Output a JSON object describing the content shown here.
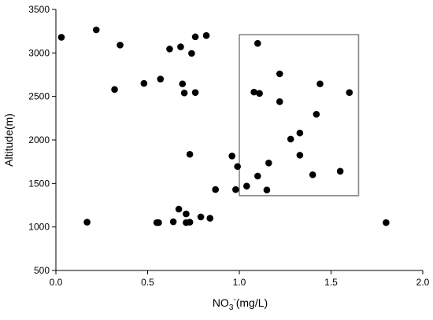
{
  "chart_data": {
    "type": "scatter",
    "xlabel_main": "NO",
    "xlabel_sub": "3",
    "xlabel_sup": "-",
    "xlabel_unit": "(mg/L)",
    "ylabel": "Altitude(m)",
    "xlim": [
      0,
      2.0
    ],
    "ylim": [
      500,
      3500
    ],
    "x_ticks": [
      0.0,
      0.5,
      1.0,
      1.5,
      2.0
    ],
    "x_tick_labels": [
      "0.0",
      "0.5",
      "1.0",
      "1.5",
      "2.0"
    ],
    "y_ticks": [
      500,
      1000,
      1500,
      2000,
      2500,
      3000,
      3500
    ],
    "y_tick_labels": [
      "500",
      "1000",
      "1500",
      "2000",
      "2500",
      "3000",
      "3500"
    ],
    "grid": false,
    "marker_color": "#000000",
    "box_color": "#888888",
    "highlight_box": {
      "x": [
        1.0,
        1.65
      ],
      "y": [
        1360,
        3210
      ]
    },
    "points": [
      {
        "x": 0.03,
        "y": 3180
      },
      {
        "x": 0.22,
        "y": 3265
      },
      {
        "x": 0.35,
        "y": 3090
      },
      {
        "x": 0.32,
        "y": 2580
      },
      {
        "x": 0.48,
        "y": 2650
      },
      {
        "x": 0.57,
        "y": 2700
      },
      {
        "x": 0.62,
        "y": 3045
      },
      {
        "x": 0.68,
        "y": 3070
      },
      {
        "x": 0.74,
        "y": 2995
      },
      {
        "x": 0.76,
        "y": 3185
      },
      {
        "x": 0.82,
        "y": 3200
      },
      {
        "x": 0.69,
        "y": 2645
      },
      {
        "x": 0.7,
        "y": 2540
      },
      {
        "x": 0.76,
        "y": 2545
      },
      {
        "x": 0.73,
        "y": 1835
      },
      {
        "x": 0.96,
        "y": 1815
      },
      {
        "x": 0.99,
        "y": 1695
      },
      {
        "x": 0.87,
        "y": 1430
      },
      {
        "x": 0.98,
        "y": 1430
      },
      {
        "x": 0.17,
        "y": 1055
      },
      {
        "x": 0.55,
        "y": 1050
      },
      {
        "x": 0.56,
        "y": 1050
      },
      {
        "x": 0.64,
        "y": 1060
      },
      {
        "x": 0.67,
        "y": 1205
      },
      {
        "x": 0.71,
        "y": 1150
      },
      {
        "x": 0.71,
        "y": 1050
      },
      {
        "x": 0.73,
        "y": 1055
      },
      {
        "x": 0.79,
        "y": 1115
      },
      {
        "x": 0.84,
        "y": 1100
      },
      {
        "x": 1.8,
        "y": 1050
      },
      {
        "x": 1.1,
        "y": 3110
      },
      {
        "x": 1.08,
        "y": 2550
      },
      {
        "x": 1.11,
        "y": 2535
      },
      {
        "x": 1.22,
        "y": 2760
      },
      {
        "x": 1.22,
        "y": 2440
      },
      {
        "x": 1.44,
        "y": 2645
      },
      {
        "x": 1.6,
        "y": 2545
      },
      {
        "x": 1.42,
        "y": 2295
      },
      {
        "x": 1.33,
        "y": 2080
      },
      {
        "x": 1.28,
        "y": 2010
      },
      {
        "x": 1.33,
        "y": 1825
      },
      {
        "x": 1.16,
        "y": 1735
      },
      {
        "x": 1.4,
        "y": 1600
      },
      {
        "x": 1.55,
        "y": 1640
      },
      {
        "x": 1.1,
        "y": 1585
      },
      {
        "x": 1.04,
        "y": 1470
      },
      {
        "x": 1.15,
        "y": 1425
      }
    ]
  }
}
